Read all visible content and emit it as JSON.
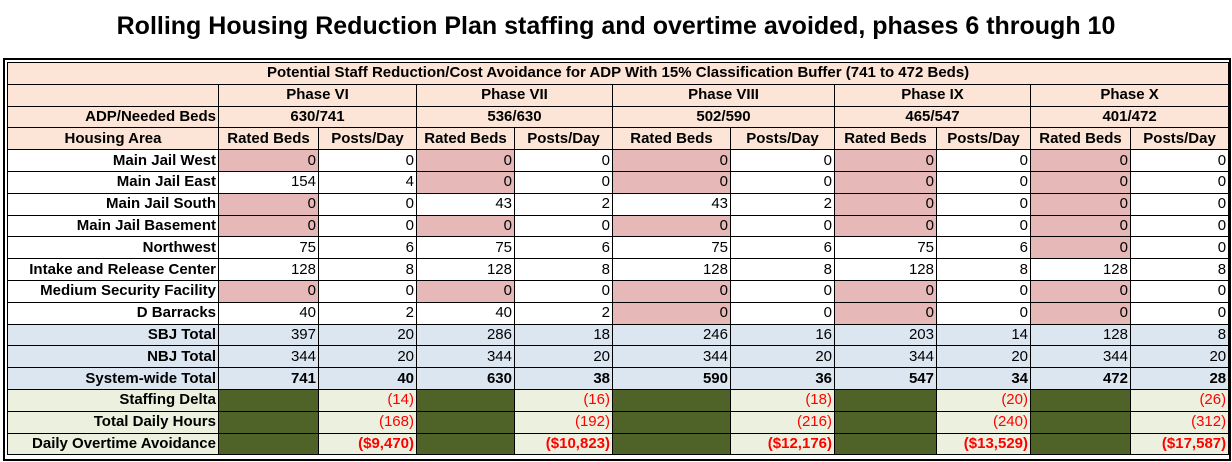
{
  "title": "Rolling Housing Reduction Plan staffing and overtime avoided, phases 6 through 10",
  "table": {
    "caption": "Potential Staff Reduction/Cost Avoidance for ADP With 15% Classification Buffer (741 to 472 Beds)",
    "phases": [
      "Phase VI",
      "Phase VII",
      "Phase VIII",
      "Phase IX",
      "Phase X"
    ],
    "adp_label": "ADP/Needed Beds",
    "adp": [
      "630/741",
      "536/630",
      "502/590",
      "465/547",
      "401/472"
    ],
    "housing_label": "Housing Area",
    "col_rated": "Rated Beds",
    "col_posts": "Posts/Day",
    "rows": [
      {
        "label": "Main Jail West",
        "values": [
          "0",
          "0",
          "0",
          "0",
          "0",
          "0",
          "0",
          "0",
          "0",
          "0"
        ]
      },
      {
        "label": "Main Jail East",
        "values": [
          "154",
          "4",
          "0",
          "0",
          "0",
          "0",
          "0",
          "0",
          "0",
          "0"
        ]
      },
      {
        "label": "Main Jail South",
        "values": [
          "0",
          "0",
          "43",
          "2",
          "43",
          "2",
          "0",
          "0",
          "0",
          "0"
        ]
      },
      {
        "label": "Main Jail Basement",
        "values": [
          "0",
          "0",
          "0",
          "0",
          "0",
          "0",
          "0",
          "0",
          "0",
          "0"
        ]
      },
      {
        "label": "Northwest",
        "values": [
          "75",
          "6",
          "75",
          "6",
          "75",
          "6",
          "75",
          "6",
          "0",
          "0"
        ]
      },
      {
        "label": "Intake and Release Center",
        "values": [
          "128",
          "8",
          "128",
          "8",
          "128",
          "8",
          "128",
          "8",
          "128",
          "8"
        ]
      },
      {
        "label": "Medium Security Facility",
        "values": [
          "0",
          "0",
          "0",
          "0",
          "0",
          "0",
          "0",
          "0",
          "0",
          "0"
        ]
      },
      {
        "label": "D Barracks",
        "values": [
          "40",
          "2",
          "40",
          "2",
          "0",
          "0",
          "0",
          "0",
          "0",
          "0"
        ]
      }
    ],
    "totals": [
      {
        "label": "SBJ Total",
        "values": [
          "397",
          "20",
          "286",
          "18",
          "246",
          "16",
          "203",
          "14",
          "128",
          "8"
        ]
      },
      {
        "label": "NBJ Total",
        "values": [
          "344",
          "20",
          "344",
          "20",
          "344",
          "20",
          "344",
          "20",
          "344",
          "20"
        ]
      },
      {
        "label": "System-wide Total",
        "values": [
          "741",
          "40",
          "630",
          "38",
          "590",
          "36",
          "547",
          "34",
          "472",
          "28"
        ]
      }
    ],
    "deltas": [
      {
        "label": "Staffing Delta",
        "values": [
          "(14)",
          "(16)",
          "(18)",
          "(20)",
          "(26)"
        ]
      },
      {
        "label": "Total Daily Hours",
        "values": [
          "(168)",
          "(192)",
          "(216)",
          "(240)",
          "(312)"
        ]
      },
      {
        "label": "Daily Overtime Avoidance",
        "values": [
          "($9,470)",
          "($10,823)",
          "($12,176)",
          "($13,529)",
          "($17,587)"
        ]
      }
    ]
  },
  "colors": {
    "header": "#fce4d6",
    "closed_unit": "#e6b8b7",
    "totals": "#dce6f1",
    "delta_row": "#ebf1de",
    "delta_filler": "#4f6228",
    "negative": "#ff0000"
  }
}
